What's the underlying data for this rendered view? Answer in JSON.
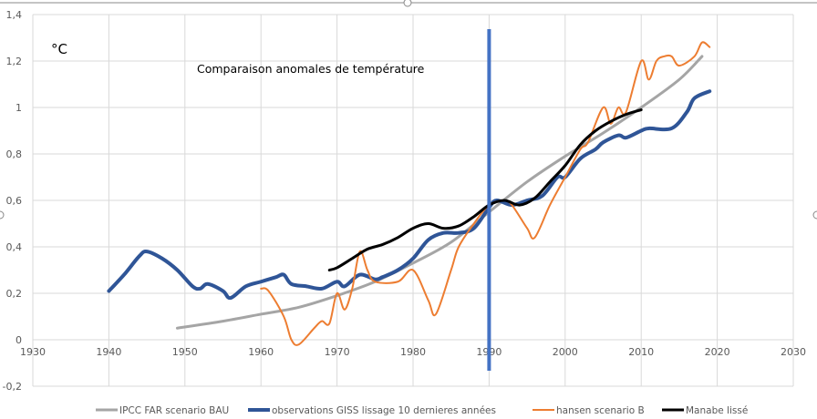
{
  "chart_data": {
    "type": "line",
    "title": "Comparaison anomales de température",
    "ylabel": "°C",
    "xlabel": "",
    "xlim": [
      1930,
      2030
    ],
    "ylim": [
      -0.2,
      1.4
    ],
    "x_ticks": [
      1930,
      1940,
      1950,
      1960,
      1970,
      1980,
      1990,
      2000,
      2010,
      2020,
      2030
    ],
    "y_ticks": [
      -0.2,
      0,
      0.2,
      0.4,
      0.6,
      0.8,
      1,
      1.2,
      1.4
    ],
    "y_tick_labels": [
      "-0,2",
      "0",
      "0,2",
      "0,4",
      "0,6",
      "0,8",
      "1",
      "1,2",
      "1,4"
    ],
    "grid": true,
    "legend_position": "bottom",
    "annotations": [
      {
        "type": "vertical-line",
        "x": 1990,
        "color": "#4472C4"
      }
    ],
    "series": [
      {
        "name": "IPCC FAR scenario BAU",
        "color": "#A5A5A5",
        "width": 3,
        "points": [
          [
            1949,
            0.05
          ],
          [
            1955,
            0.08
          ],
          [
            1960,
            0.11
          ],
          [
            1965,
            0.14
          ],
          [
            1970,
            0.19
          ],
          [
            1975,
            0.25
          ],
          [
            1980,
            0.33
          ],
          [
            1985,
            0.42
          ],
          [
            1990,
            0.55
          ],
          [
            1995,
            0.68
          ],
          [
            2000,
            0.79
          ],
          [
            2005,
            0.89
          ],
          [
            2010,
            1.0
          ],
          [
            2015,
            1.12
          ],
          [
            2018,
            1.22
          ]
        ]
      },
      {
        "name": "observations GISS lissage 10 dernieres années",
        "color": "#2F5597",
        "width": 4,
        "points": [
          [
            1940,
            0.21
          ],
          [
            1942,
            0.28
          ],
          [
            1944,
            0.36
          ],
          [
            1945,
            0.38
          ],
          [
            1947,
            0.35
          ],
          [
            1949,
            0.3
          ],
          [
            1951,
            0.23
          ],
          [
            1952,
            0.22
          ],
          [
            1953,
            0.24
          ],
          [
            1955,
            0.21
          ],
          [
            1956,
            0.18
          ],
          [
            1958,
            0.23
          ],
          [
            1960,
            0.25
          ],
          [
            1962,
            0.27
          ],
          [
            1963,
            0.28
          ],
          [
            1964,
            0.24
          ],
          [
            1966,
            0.23
          ],
          [
            1968,
            0.22
          ],
          [
            1970,
            0.25
          ],
          [
            1971,
            0.23
          ],
          [
            1973,
            0.28
          ],
          [
            1975,
            0.26
          ],
          [
            1976,
            0.27
          ],
          [
            1978,
            0.3
          ],
          [
            1980,
            0.35
          ],
          [
            1982,
            0.43
          ],
          [
            1984,
            0.46
          ],
          [
            1986,
            0.46
          ],
          [
            1988,
            0.48
          ],
          [
            1990,
            0.57
          ],
          [
            1991,
            0.6
          ],
          [
            1993,
            0.58
          ],
          [
            1995,
            0.6
          ],
          [
            1997,
            0.62
          ],
          [
            1999,
            0.7
          ],
          [
            2000,
            0.7
          ],
          [
            2002,
            0.78
          ],
          [
            2004,
            0.82
          ],
          [
            2005,
            0.85
          ],
          [
            2007,
            0.88
          ],
          [
            2008,
            0.87
          ],
          [
            2010,
            0.9
          ],
          [
            2011,
            0.91
          ],
          [
            2014,
            0.91
          ],
          [
            2016,
            0.98
          ],
          [
            2017,
            1.04
          ],
          [
            2019,
            1.07
          ]
        ]
      },
      {
        "name": "hansen scenario B",
        "color": "#ED7D31",
        "width": 2,
        "points": [
          [
            1960,
            0.22
          ],
          [
            1961,
            0.21
          ],
          [
            1963,
            0.1
          ],
          [
            1964,
            0.0
          ],
          [
            1965,
            -0.02
          ],
          [
            1967,
            0.05
          ],
          [
            1968,
            0.08
          ],
          [
            1969,
            0.07
          ],
          [
            1970,
            0.2
          ],
          [
            1971,
            0.13
          ],
          [
            1972,
            0.22
          ],
          [
            1973,
            0.38
          ],
          [
            1974,
            0.3
          ],
          [
            1975,
            0.25
          ],
          [
            1978,
            0.25
          ],
          [
            1980,
            0.3
          ],
          [
            1982,
            0.17
          ],
          [
            1983,
            0.11
          ],
          [
            1985,
            0.3
          ],
          [
            1986,
            0.4
          ],
          [
            1988,
            0.5
          ],
          [
            1990,
            0.58
          ],
          [
            1992,
            0.6
          ],
          [
            1993,
            0.58
          ],
          [
            1995,
            0.48
          ],
          [
            1996,
            0.44
          ],
          [
            1998,
            0.58
          ],
          [
            2000,
            0.7
          ],
          [
            2002,
            0.82
          ],
          [
            2003,
            0.85
          ],
          [
            2005,
            1.0
          ],
          [
            2006,
            0.93
          ],
          [
            2007,
            1.0
          ],
          [
            2008,
            0.98
          ],
          [
            2010,
            1.2
          ],
          [
            2011,
            1.12
          ],
          [
            2012,
            1.2
          ],
          [
            2013,
            1.22
          ],
          [
            2014,
            1.22
          ],
          [
            2015,
            1.18
          ],
          [
            2017,
            1.22
          ],
          [
            2018,
            1.28
          ],
          [
            2019,
            1.26
          ]
        ]
      },
      {
        "name": "Manabe lissé",
        "color": "#000000",
        "width": 3,
        "points": [
          [
            1969,
            0.3
          ],
          [
            1970,
            0.31
          ],
          [
            1972,
            0.35
          ],
          [
            1974,
            0.39
          ],
          [
            1976,
            0.41
          ],
          [
            1978,
            0.44
          ],
          [
            1980,
            0.48
          ],
          [
            1982,
            0.5
          ],
          [
            1984,
            0.48
          ],
          [
            1986,
            0.49
          ],
          [
            1988,
            0.53
          ],
          [
            1990,
            0.58
          ],
          [
            1992,
            0.6
          ],
          [
            1994,
            0.58
          ],
          [
            1996,
            0.61
          ],
          [
            1998,
            0.68
          ],
          [
            2000,
            0.75
          ],
          [
            2002,
            0.84
          ],
          [
            2004,
            0.9
          ],
          [
            2006,
            0.94
          ],
          [
            2008,
            0.97
          ],
          [
            2010,
            0.99
          ]
        ]
      }
    ]
  }
}
